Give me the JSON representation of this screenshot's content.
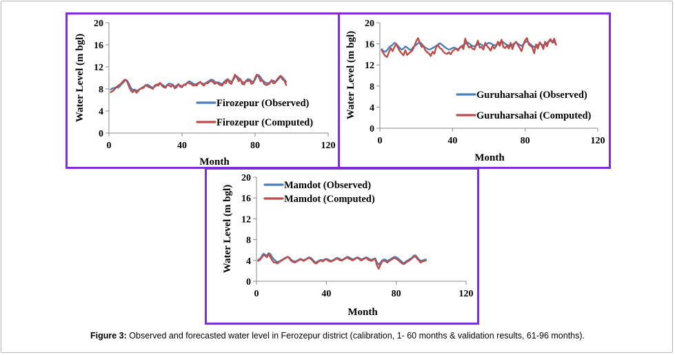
{
  "colors": {
    "observed": "#4a7ebb",
    "computed": "#be4b48",
    "frame": "#7b2fd6"
  },
  "caption": {
    "label": "Figure 3:",
    "text": " Observed and forecasted water level in Ferozepur district (calibration, 1- 60 months & validation results, 61-96 months)."
  },
  "chart_data": [
    {
      "type": "line",
      "xlabel": "Month",
      "ylabel": "Water Level (m bgl)",
      "xlim": [
        0,
        120
      ],
      "ylim": [
        0,
        20
      ],
      "xticks": [
        0,
        40,
        80,
        120
      ],
      "yticks": [
        0,
        4,
        8,
        12,
        16,
        20
      ],
      "legend_position": "right",
      "series": [
        {
          "name": "Firozepur (Observed)",
          "values": [
            7.9,
            8.1,
            8.2,
            8.3,
            8.2,
            8.5,
            8.9,
            9.2,
            9.6,
            9.5,
            8.9,
            8.2,
            7.8,
            7.9,
            7.7,
            7.8,
            8.0,
            8.2,
            8.4,
            8.6,
            8.8,
            8.6,
            8.4,
            8.2,
            8.4,
            8.6,
            8.9,
            9.0,
            8.8,
            8.6,
            8.4,
            8.7,
            9.0,
            8.9,
            8.6,
            8.4,
            8.6,
            8.8,
            8.6,
            8.5,
            8.7,
            8.9,
            9.1,
            9.4,
            9.2,
            9.0,
            8.8,
            8.9,
            9.1,
            9.2,
            9.0,
            8.9,
            9.0,
            9.3,
            9.5,
            9.7,
            9.6,
            9.3,
            9.1,
            9.2,
            9.0,
            8.9,
            9.2,
            9.6,
            9.7,
            9.5,
            9.3,
            9.6,
            10.2,
            10.3,
            10.0,
            9.6,
            9.3,
            9.1,
            9.4,
            9.8,
            9.7,
            9.4,
            9.3,
            9.7,
            10.4,
            10.5,
            10.1,
            9.6,
            9.3,
            9.1,
            9.0,
            9.2,
            9.4,
            9.5,
            9.3,
            9.5,
            9.9,
            10.2,
            10.1,
            9.7,
            9.3
          ]
        },
        {
          "name": "Firozepur (Computed)",
          "values": [
            7.4,
            7.6,
            7.9,
            8.3,
            8.6,
            8.8,
            9.1,
            9.5,
            9.7,
            9.3,
            8.4,
            7.7,
            7.4,
            7.8,
            7.3,
            7.6,
            8.0,
            8.1,
            8.2,
            8.7,
            8.5,
            8.3,
            8.2,
            8.0,
            8.6,
            8.8,
            8.6,
            9.1,
            8.6,
            8.3,
            8.2,
            8.8,
            8.6,
            8.4,
            8.8,
            8.1,
            8.3,
            8.9,
            8.4,
            8.3,
            8.8,
            8.7,
            9.2,
            9.0,
            8.9,
            8.6,
            8.7,
            8.6,
            9.0,
            9.3,
            8.8,
            8.6,
            9.1,
            9.0,
            9.3,
            9.5,
            9.2,
            8.9,
            9.2,
            8.9,
            8.7,
            8.6,
            9.3,
            9.0,
            9.8,
            9.1,
            8.9,
            9.8,
            10.6,
            10.1,
            9.4,
            9.8,
            8.9,
            8.8,
            9.5,
            9.4,
            9.6,
            8.9,
            9.1,
            10.0,
            10.6,
            10.2,
            9.4,
            9.6,
            8.9,
            8.7,
            8.8,
            9.0,
            9.6,
            9.0,
            9.1,
            9.7,
            10.1,
            10.4,
            9.7,
            9.5,
            8.7
          ]
        }
      ]
    },
    {
      "type": "line",
      "xlabel": "Month",
      "ylabel": "Water Level (m bgl)",
      "xlim": [
        0,
        120
      ],
      "ylim": [
        0,
        20
      ],
      "xticks": [
        0,
        40,
        80,
        120
      ],
      "yticks": [
        0,
        4,
        8,
        12,
        16,
        20
      ],
      "legend_position": "right",
      "series": [
        {
          "name": "Guruharsahai (Observed)",
          "values": [
            15.0,
            14.6,
            14.5,
            14.8,
            15.3,
            15.6,
            15.8,
            16.2,
            16.0,
            15.6,
            15.2,
            14.9,
            15.1,
            15.5,
            15.3,
            15.0,
            14.8,
            15.2,
            15.6,
            15.8,
            16.1,
            16.3,
            16.0,
            15.6,
            15.3,
            15.1,
            14.9,
            15.0,
            15.2,
            15.4,
            15.6,
            15.9,
            16.1,
            15.9,
            15.6,
            15.3,
            15.1,
            14.9,
            15.0,
            15.2,
            15.3,
            15.1,
            15.0,
            15.2,
            15.5,
            15.8,
            16.0,
            16.3,
            16.1,
            15.8,
            15.6,
            15.5,
            15.7,
            15.9,
            16.0,
            15.8,
            15.6,
            15.7,
            16.0,
            16.2,
            16.1,
            15.9,
            15.7,
            15.8,
            16.0,
            16.2,
            16.5,
            16.3,
            16.0,
            15.8,
            15.7,
            15.6,
            15.8,
            16.1,
            16.3,
            16.0,
            15.8,
            15.6,
            15.9,
            16.3,
            16.5,
            16.2,
            15.9,
            15.6,
            15.4,
            15.6,
            15.8,
            16.0,
            15.9,
            15.7,
            15.9,
            16.2,
            16.4,
            16.6,
            16.5,
            16.3,
            16.0
          ]
        },
        {
          "name": "Guruharsahai (Computed)",
          "values": [
            14.8,
            14.2,
            13.7,
            13.5,
            14.5,
            15.2,
            14.6,
            15.4,
            16.0,
            15.2,
            14.6,
            14.2,
            13.8,
            14.8,
            13.9,
            14.2,
            14.5,
            14.8,
            15.6,
            16.5,
            17.1,
            16.2,
            15.4,
            15.6,
            14.8,
            14.4,
            14.2,
            13.7,
            14.5,
            14.1,
            15.4,
            15.8,
            15.2,
            15.0,
            14.5,
            14.2,
            14.1,
            14.4,
            14.0,
            14.6,
            14.9,
            15.1,
            14.7,
            15.3,
            15.6,
            15.0,
            17.0,
            16.0,
            15.3,
            15.5,
            15.1,
            14.9,
            15.8,
            16.6,
            15.3,
            15.4,
            14.9,
            16.2,
            15.6,
            15.2,
            14.7,
            15.6,
            15.1,
            15.5,
            16.4,
            15.6,
            16.8,
            15.4,
            15.2,
            15.7,
            15.1,
            16.2,
            15.0,
            16.0,
            16.4,
            15.8,
            15.2,
            14.6,
            15.8,
            16.7,
            17.1,
            15.9,
            15.6,
            15.3,
            14.2,
            15.9,
            15.1,
            16.3,
            15.8,
            15.0,
            16.4,
            15.5,
            16.5,
            16.9,
            16.2,
            17.0,
            15.8
          ]
        }
      ]
    },
    {
      "type": "line",
      "xlabel": "Month",
      "ylabel": "Water Level (m bgl)",
      "xlim": [
        0,
        120
      ],
      "ylim": [
        0,
        20
      ],
      "xticks": [
        0,
        40,
        80,
        120
      ],
      "yticks": [
        0,
        4,
        8,
        12,
        16,
        20
      ],
      "legend_position": "top-left",
      "series": [
        {
          "name": "Mamdot (Observed)",
          "values": [
            4.1,
            4.3,
            4.8,
            5.3,
            5.1,
            4.9,
            5.4,
            5.2,
            4.6,
            4.2,
            3.9,
            3.7,
            3.8,
            4.0,
            4.2,
            4.4,
            4.6,
            4.7,
            4.5,
            4.1,
            3.9,
            3.8,
            3.9,
            4.1,
            4.3,
            4.2,
            4.0,
            4.2,
            4.4,
            4.6,
            4.5,
            4.2,
            3.8,
            3.6,
            3.8,
            4.0,
            4.1,
            4.0,
            4.2,
            4.3,
            4.2,
            4.0,
            3.9,
            4.1,
            4.3,
            4.5,
            4.4,
            4.2,
            4.1,
            4.3,
            4.5,
            4.7,
            4.6,
            4.4,
            4.2,
            4.3,
            4.5,
            4.6,
            4.4,
            4.2,
            4.3,
            4.5,
            4.6,
            4.4,
            4.2,
            4.1,
            4.3,
            4.4,
            3.6,
            3.2,
            3.6,
            4.0,
            4.2,
            4.1,
            3.9,
            4.1,
            4.3,
            4.5,
            4.7,
            4.6,
            4.4,
            4.1,
            3.8,
            3.5,
            3.6,
            3.9,
            4.1,
            4.3,
            4.5,
            4.9,
            5.0,
            4.6,
            4.2,
            3.9,
            4.0,
            4.1,
            4.2
          ]
        },
        {
          "name": "Mamdot (Computed)",
          "values": [
            3.9,
            4.1,
            4.6,
            5.0,
            4.9,
            4.6,
            5.3,
            4.6,
            4.0,
            3.6,
            3.6,
            3.4,
            3.7,
            3.9,
            4.1,
            4.3,
            4.5,
            4.7,
            4.3,
            3.9,
            3.7,
            3.6,
            3.8,
            4.0,
            4.2,
            4.1,
            3.9,
            4.1,
            4.3,
            4.5,
            4.3,
            4.0,
            3.6,
            3.4,
            3.6,
            3.9,
            4.0,
            3.8,
            4.1,
            4.2,
            4.0,
            3.8,
            3.8,
            4.0,
            4.2,
            4.4,
            4.2,
            4.0,
            4.0,
            4.2,
            4.4,
            4.6,
            4.3,
            4.2,
            4.0,
            4.2,
            4.4,
            4.5,
            4.2,
            4.0,
            4.2,
            4.4,
            4.5,
            4.1,
            4.0,
            3.9,
            4.2,
            4.2,
            3.0,
            2.4,
            3.2,
            3.8,
            4.0,
            3.8,
            3.6,
            3.9,
            4.1,
            4.3,
            4.5,
            4.3,
            4.1,
            3.8,
            3.5,
            3.3,
            3.4,
            3.7,
            3.9,
            4.1,
            4.4,
            4.7,
            4.8,
            4.3,
            4.0,
            3.6,
            3.8,
            3.9,
            4.0
          ]
        }
      ]
    }
  ]
}
